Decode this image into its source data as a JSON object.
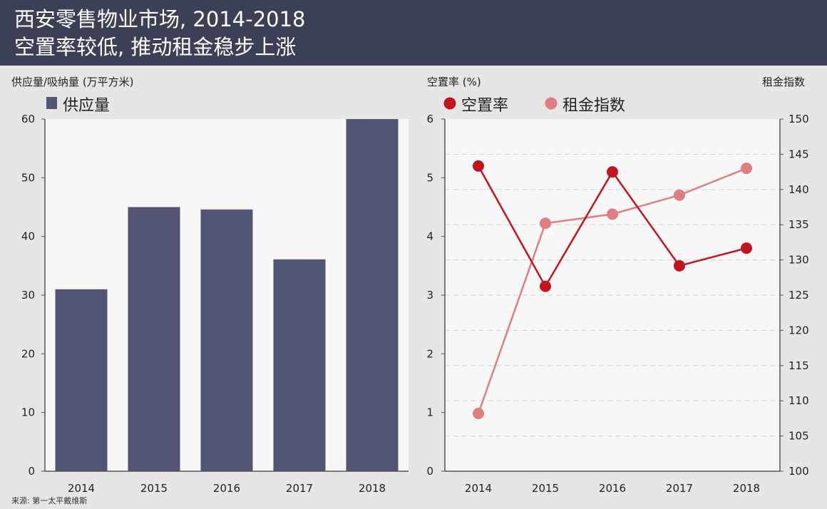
{
  "header": {
    "title_line1": "西安零售物业市场, 2014-2018",
    "title_line2": "空置率较低, 推动租金稳步上涨"
  },
  "source": "来源: 第一太平戴维斯",
  "colors": {
    "header_bg": "#3b4057",
    "bar": "#525574",
    "vacancy": "#c0141f",
    "rent": "#e07d80",
    "plot_bg": "#f7f7f7"
  },
  "chart_data": [
    {
      "type": "bar",
      "ylabel": "供应量/吸纳量 (万平方米)",
      "categories": [
        "2014",
        "2015",
        "2016",
        "2017",
        "2018"
      ],
      "series": [
        {
          "name": "供应量",
          "values": [
            31,
            45,
            44.6,
            36.1,
            60
          ]
        }
      ],
      "ylim": [
        0,
        60
      ],
      "yticks": [
        "0",
        "10",
        "20",
        "30",
        "40",
        "50",
        "60"
      ],
      "legend": "top-left",
      "grid": false
    },
    {
      "type": "line",
      "ylabel": "空置率 (%)",
      "ylabel_right": "租金指数",
      "categories": [
        "2014",
        "2015",
        "2016",
        "2017",
        "2018"
      ],
      "series": [
        {
          "name": "空置率",
          "axis": "left",
          "values": [
            5.2,
            3.15,
            5.1,
            3.5,
            3.8
          ]
        },
        {
          "name": "租金指数",
          "axis": "right",
          "values": [
            108.2,
            135.2,
            136.5,
            139.2,
            143
          ]
        }
      ],
      "ylim_left": [
        0,
        6
      ],
      "yticks_left": [
        "0",
        "1",
        "2",
        "3",
        "4",
        "5",
        "6"
      ],
      "ylim_right": [
        100,
        150
      ],
      "yticks_right": [
        "100",
        "105",
        "110",
        "115",
        "120",
        "125",
        "130",
        "135",
        "140",
        "145",
        "150"
      ],
      "legend": "top-left",
      "grid": true
    }
  ]
}
